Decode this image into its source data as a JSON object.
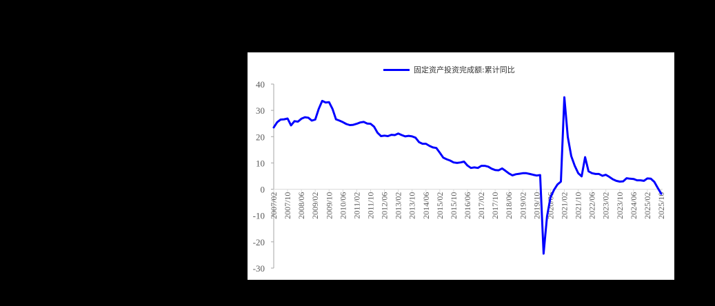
{
  "chart_data": {
    "type": "line",
    "title": "",
    "legend": [
      "固定资产投资完成额:累计同比"
    ],
    "legend_position": "top",
    "xlabel": "",
    "ylabel": "",
    "ylim": [
      -30,
      40
    ],
    "yticks": [
      40,
      30,
      20,
      10,
      0,
      -10,
      -20,
      -30
    ],
    "grid": false,
    "line_color": "#0000ff",
    "x_tick_labels": [
      "2007/02",
      "2007/10",
      "2008/06",
      "2009/02",
      "2009/10",
      "2010/06",
      "2011/02",
      "2011/10",
      "2012/06",
      "2013/02",
      "2013/10",
      "2014/06",
      "2015/02",
      "2015/10",
      "2016/06",
      "2017/02",
      "2017/10",
      "2018/06",
      "2019/02",
      "2019/10",
      "2020/06",
      "2021/02",
      "2021/10",
      "2022/06",
      "2023/02",
      "2023/10",
      "2024/06",
      "2025/02",
      "2025/10"
    ],
    "series": [
      {
        "name": "固定资产投资完成额:累计同比",
        "x": [
          "2007/02",
          "2007/04",
          "2007/06",
          "2007/08",
          "2007/10",
          "2007/12",
          "2008/02",
          "2008/04",
          "2008/06",
          "2008/08",
          "2008/10",
          "2008/12",
          "2009/02",
          "2009/04",
          "2009/06",
          "2009/08",
          "2009/10",
          "2009/12",
          "2010/02",
          "2010/04",
          "2010/06",
          "2010/08",
          "2010/10",
          "2010/12",
          "2011/02",
          "2011/04",
          "2011/06",
          "2011/08",
          "2011/10",
          "2011/12",
          "2012/02",
          "2012/04",
          "2012/06",
          "2012/08",
          "2012/10",
          "2012/12",
          "2013/02",
          "2013/04",
          "2013/06",
          "2013/08",
          "2013/10",
          "2013/12",
          "2014/02",
          "2014/04",
          "2014/06",
          "2014/08",
          "2014/10",
          "2014/12",
          "2015/02",
          "2015/04",
          "2015/06",
          "2015/08",
          "2015/10",
          "2015/12",
          "2016/02",
          "2016/04",
          "2016/06",
          "2016/08",
          "2016/10",
          "2016/12",
          "2017/02",
          "2017/04",
          "2017/06",
          "2017/08",
          "2017/10",
          "2017/12",
          "2018/02",
          "2018/04",
          "2018/06",
          "2018/08",
          "2018/10",
          "2018/12",
          "2019/02",
          "2019/04",
          "2019/06",
          "2019/08",
          "2019/10",
          "2019/12",
          "2020/02",
          "2020/04",
          "2020/06",
          "2020/08",
          "2020/10",
          "2020/12",
          "2021/02",
          "2021/04",
          "2021/06",
          "2021/08",
          "2021/10",
          "2021/12",
          "2022/02",
          "2022/04",
          "2022/06",
          "2022/08",
          "2022/10",
          "2022/12",
          "2023/02",
          "2023/04",
          "2023/06",
          "2023/08",
          "2023/10",
          "2023/12",
          "2024/02",
          "2024/04",
          "2024/06",
          "2024/08",
          "2024/10",
          "2024/12",
          "2025/02",
          "2025/04",
          "2025/06",
          "2025/08",
          "2025/10"
        ],
        "values": [
          23.5,
          25.5,
          26.5,
          26.6,
          26.9,
          24.3,
          25.9,
          25.7,
          26.8,
          27.4,
          27.2,
          26.1,
          26.5,
          30.5,
          33.6,
          33.0,
          33.1,
          30.5,
          26.6,
          26.1,
          25.5,
          24.8,
          24.4,
          24.5,
          24.9,
          25.4,
          25.6,
          25.0,
          24.9,
          23.8,
          21.5,
          20.2,
          20.4,
          20.2,
          20.7,
          20.6,
          21.2,
          20.6,
          20.1,
          20.3,
          20.1,
          19.6,
          17.9,
          17.3,
          17.3,
          16.5,
          15.9,
          15.7,
          13.9,
          12.0,
          11.4,
          10.9,
          10.2,
          10.0,
          10.2,
          10.5,
          9.0,
          8.1,
          8.3,
          8.1,
          8.9,
          8.9,
          8.6,
          7.8,
          7.3,
          7.2,
          7.9,
          7.0,
          6.0,
          5.3,
          5.7,
          5.9,
          6.1,
          6.1,
          5.8,
          5.5,
          5.2,
          5.4,
          -24.5,
          -10.3,
          -3.1,
          -0.3,
          1.8,
          2.9,
          35.0,
          19.9,
          12.6,
          8.9,
          6.1,
          4.9,
          12.2,
          6.8,
          6.1,
          5.8,
          5.8,
          5.1,
          5.5,
          4.7,
          3.8,
          3.2,
          2.9,
          3.0,
          4.2,
          4.0,
          3.9,
          3.4,
          3.4,
          3.2,
          4.1,
          4.0,
          2.8,
          0.5,
          -1.7
        ]
      }
    ]
  }
}
